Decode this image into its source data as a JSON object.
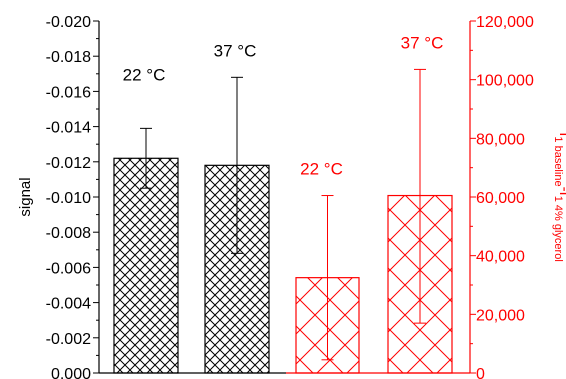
{
  "chart_data": {
    "type": "bar",
    "left_axis": {
      "label": "signal",
      "min": 0.0,
      "max": -0.02,
      "major_ticks": [
        0.0,
        -0.002,
        -0.004,
        -0.006,
        -0.008,
        -0.01,
        -0.012,
        -0.014,
        -0.016,
        -0.018,
        -0.02
      ],
      "tick_labels": [
        "0.000",
        "-0.002",
        "-0.004",
        "-0.006",
        "-0.008",
        "-0.010",
        "-0.012",
        "-0.014",
        "-0.016",
        "-0.018",
        "-0.020"
      ],
      "color": "#000000"
    },
    "right_axis": {
      "label_main": "I",
      "label_sub1": "1 baseline",
      "label_mid": "-I",
      "label_sub2": "1 4% glycerol",
      "min": 0,
      "max": 120000,
      "major_ticks": [
        0,
        20000,
        40000,
        60000,
        80000,
        100000,
        120000
      ],
      "tick_labels": [
        "0",
        "20,000",
        "40,000",
        "60,000",
        "80,000",
        "100,000",
        "120,000"
      ],
      "color": "#ff0000"
    },
    "bars": [
      {
        "axis": "left",
        "value": -0.0122,
        "err_low": -0.0105,
        "err_high": -0.0139,
        "label": "22 °C",
        "color": "#000000"
      },
      {
        "axis": "left",
        "value": -0.0118,
        "err_low": -0.0068,
        "err_high": -0.0168,
        "label": "37 °C",
        "color": "#000000"
      },
      {
        "axis": "right",
        "value": 32500,
        "err_low": 4500,
        "err_high": 60500,
        "label": "22 °C",
        "color": "#ff0000"
      },
      {
        "axis": "right",
        "value": 60500,
        "err_low": 17000,
        "err_high": 103500,
        "label": "37 °C",
        "color": "#ff0000"
      }
    ]
  }
}
